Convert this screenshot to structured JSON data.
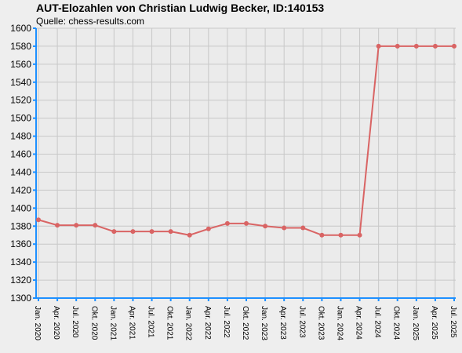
{
  "chart_data": {
    "type": "line",
    "title": "AUT-Elozahlen von Christian Ludwig Becker, ID:140153",
    "subtitle": "Quelle: chess-results.com",
    "xlabel": "",
    "ylabel": "",
    "ylim": [
      1300,
      1600
    ],
    "yticks": [
      1300,
      1320,
      1340,
      1360,
      1380,
      1400,
      1420,
      1440,
      1460,
      1480,
      1500,
      1520,
      1540,
      1560,
      1580,
      1600
    ],
    "categories": [
      "Jan. 2020",
      "Apr. 2020",
      "Jul. 2020",
      "Okt. 2020",
      "Jan. 2021",
      "Apr. 2021",
      "Jul. 2021",
      "Okt. 2021",
      "Jan. 2022",
      "Apr. 2022",
      "Jul. 2022",
      "Okt. 2022",
      "Jan. 2023",
      "Apr. 2023",
      "Jul. 2023",
      "Okt. 2023",
      "Jan. 2024",
      "Apr. 2024",
      "Jul. 2024",
      "Okt. 2024",
      "Jan. 2025",
      "Apr. 2025",
      "Jul. 2025"
    ],
    "series": [
      {
        "values": [
          1387,
          1381,
          1381,
          1381,
          1374,
          1374,
          1374,
          1374,
          1370,
          1377,
          1383,
          1383,
          1380,
          1378,
          1378,
          1370,
          1370,
          1370,
          1580,
          1580,
          1580,
          1580,
          1580
        ],
        "color": "#d96464"
      }
    ],
    "grid": true,
    "legend": "none",
    "colors": {
      "background": "#eeeeee",
      "plot_background": "#ebebeb",
      "grid": "#c8c8c8",
      "axis": "#1e90ff",
      "line": "#d96464"
    }
  }
}
